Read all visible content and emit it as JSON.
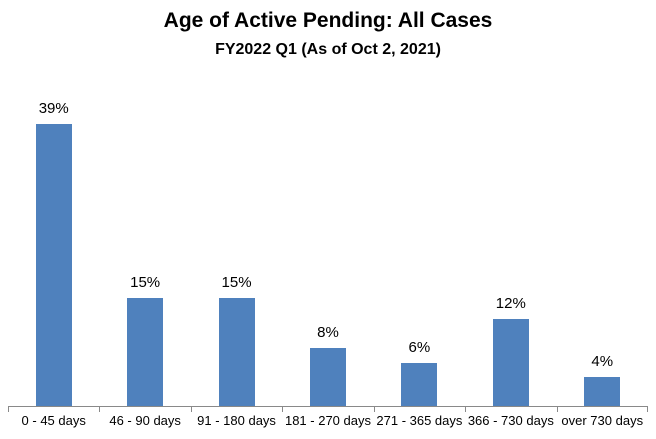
{
  "chart_data": {
    "type": "bar",
    "title": "Age of Active Pending: All Cases",
    "subtitle": "FY2022 Q1 (As of Oct 2, 2021)",
    "categories": [
      "0 - 45 days",
      "46 - 90 days",
      "91 - 180 days",
      "181 - 270 days",
      "271 - 365 days",
      "366 - 730 days",
      "over 730 days"
    ],
    "values": [
      39,
      15,
      15,
      8,
      6,
      12,
      4
    ],
    "data_labels": [
      "39%",
      "15%",
      "15%",
      "8%",
      "6%",
      "12%",
      "4%"
    ],
    "xlabel": "",
    "ylabel": "",
    "ylim": [
      0,
      40
    ],
    "y_axis_visible": false,
    "grid": false,
    "legend": "none",
    "bar_color": "#4F81BD",
    "axis_color": "#898989",
    "text_color": "#000000",
    "background_color": "#FFFFFF"
  }
}
